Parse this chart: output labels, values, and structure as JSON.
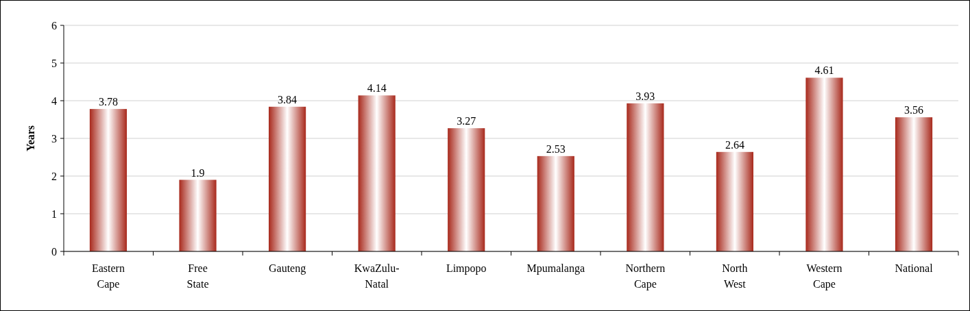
{
  "chart_data": {
    "type": "bar",
    "ylabel": "Years",
    "categories": [
      "Eastern\nCape",
      "Free\nState",
      "Gauteng",
      "KwaZulu-\nNatal",
      "Limpopo",
      "Mpumalanga",
      "Northern\nCape",
      "North\nWest",
      "Western\nCape",
      "National"
    ],
    "values": [
      3.78,
      1.9,
      3.84,
      4.14,
      3.27,
      2.53,
      3.93,
      2.64,
      4.61,
      3.56
    ],
    "color": "#a8291c",
    "ylim": [
      0,
      6
    ],
    "yticks": [
      0,
      1,
      2,
      3,
      4,
      5,
      6
    ],
    "grid": "y",
    "data_labels": true
  }
}
